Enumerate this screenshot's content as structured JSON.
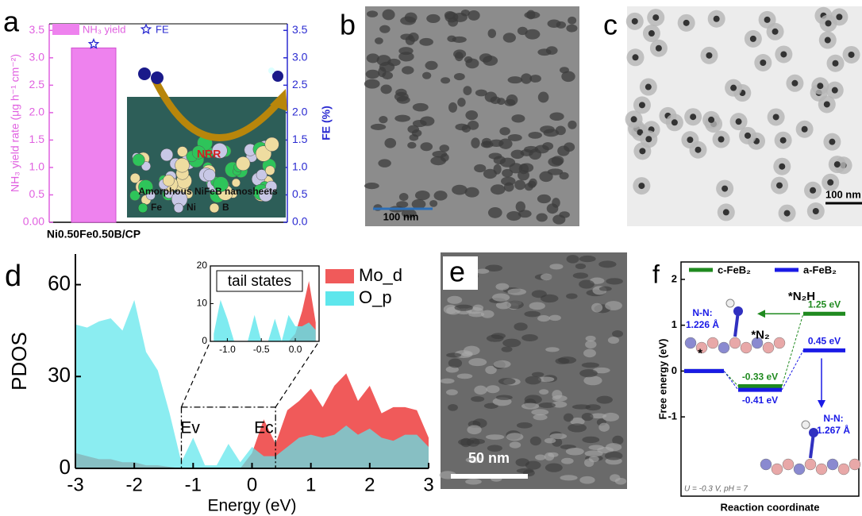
{
  "chart_data": [
    {
      "panel": "a",
      "type": "bar",
      "categories": [
        "Ni0.50Fe0.50B/CP"
      ],
      "series": [
        {
          "name": "NH₃ yield",
          "color": "#ee82ee",
          "values": [
            3.18
          ]
        },
        {
          "name": "FE",
          "color": "#2b2bd1",
          "values": [
            3.25
          ],
          "axis": "y2",
          "marker": "star"
        }
      ],
      "ylabel": "NH₃ yield rate (μg h⁻¹ cm⁻²)",
      "y2label": "FE (%)",
      "ylim": [
        0,
        3.62
      ],
      "yticks": [
        {
          "value": 0,
          "label": "0.00"
        },
        0.5,
        {
          "value": 1,
          "label": "1.0"
        },
        1.5,
        {
          "value": 2,
          "label": "2.0"
        },
        2.5,
        {
          "value": 3,
          "label": "3.0"
        },
        3.5
      ],
      "y2lim": [
        0,
        3.62
      ],
      "y2ticks": [
        {
          "value": 0,
          "label": "0.0"
        },
        0.5,
        {
          "value": 1,
          "label": "1.0"
        },
        1.5,
        {
          "value": 2,
          "label": "2.0"
        },
        2.5,
        {
          "value": 3,
          "label": "3.0"
        },
        3.5
      ],
      "inset": {
        "annotation": "NRR",
        "caption": "Amorphous NiFeB nanosheets",
        "legend": [
          "Fe",
          "Ni",
          "B"
        ]
      }
    },
    {
      "panel": "d",
      "type": "area",
      "x": [
        -3,
        -2.8,
        -2.6,
        -2.4,
        -2.2,
        -2,
        -1.8,
        -1.6,
        -1.4,
        -1.2,
        -1,
        -0.8,
        -0.6,
        -0.4,
        -0.2,
        0,
        0.2,
        0.4,
        0.6,
        0.8,
        1,
        1.2,
        1.4,
        1.6,
        1.8,
        2,
        2.2,
        2.4,
        2.6,
        2.8,
        3
      ],
      "series": [
        {
          "name": "Mo_d",
          "color": "#f05a5a",
          "values": [
            5,
            4,
            3,
            3,
            2,
            2,
            1,
            1,
            0.5,
            0,
            0,
            0,
            0,
            0,
            0,
            5,
            16,
            8,
            19,
            22,
            26,
            20,
            27,
            31,
            22,
            27,
            18,
            20,
            20,
            19,
            10
          ]
        },
        {
          "name": "O_p",
          "color": "#5ee6ec",
          "values": [
            47,
            46,
            48,
            49,
            45,
            55,
            38,
            32,
            18,
            2,
            10,
            1,
            1,
            8,
            2,
            7,
            4,
            4,
            7,
            10,
            11,
            10,
            11,
            14,
            11,
            13,
            10,
            9,
            11,
            11,
            7
          ]
        }
      ],
      "xlabel": "Energy (eV)",
      "ylabel": "PDOS",
      "xlim": [
        -3,
        3
      ],
      "xticks": [
        -3,
        -2,
        -1,
        0,
        1,
        2,
        3
      ],
      "ylim": [
        0,
        70
      ],
      "yticks": [
        0,
        30,
        60
      ],
      "annotations": [
        "Ev",
        "Ec"
      ],
      "inset": {
        "title": "tail states",
        "x": [
          -1.2,
          -1.1,
          -1,
          -0.9,
          -0.8,
          -0.7,
          -0.6,
          -0.5,
          -0.4,
          -0.3,
          -0.2,
          -0.1,
          0,
          0.1,
          0.2,
          0.3
        ],
        "series": [
          {
            "color": "#f05a5a",
            "values": [
              0,
              0,
              0,
              0,
              0,
              0,
              0,
              0,
              0,
              0,
              0,
              0,
              2,
              8,
              16,
              5
            ]
          },
          {
            "color": "#5ee6ec",
            "values": [
              2,
              11,
              6,
              0,
              0,
              0,
              7,
              0,
              0,
              6,
              0,
              7,
              4,
              4,
              5,
              3
            ]
          }
        ],
        "xlim": [
          -1.25,
          0.35
        ],
        "xticks": [
          {
            "value": -1,
            "label": "-1.0"
          },
          -0.5,
          {
            "value": 0,
            "label": "0.0"
          }
        ],
        "ylim": [
          0,
          20
        ],
        "yticks": [
          0,
          10,
          20
        ]
      }
    },
    {
      "panel": "f",
      "type": "energy-diagram",
      "categories": [
        "*",
        "*N₂",
        "*N₂H"
      ],
      "series": [
        {
          "name": "c-FeB₂",
          "color": "#1f8a1f",
          "values": [
            0,
            -0.33,
            1.25
          ],
          "value_labels": [
            null,
            "-0.33 eV",
            "1.25 eV"
          ]
        },
        {
          "name": "a-FeB₂",
          "color": "#1a1ae6",
          "values": [
            0,
            -0.41,
            0.45
          ],
          "value_labels": [
            null,
            "-0.41 eV",
            "0.45 eV"
          ]
        }
      ],
      "xlabel": "Reaction coordinate",
      "ylabel": "Free energy (eV)",
      "ylim": [
        -2.73,
        2.38
      ],
      "yticks": [
        -1,
        0,
        1,
        2
      ],
      "bond_labels": [
        [
          "N-N:",
          "1.226 Å"
        ],
        [
          "N-N:",
          "1.267 Å"
        ]
      ],
      "condition": "U = -0.3 V, pH = 7"
    }
  ],
  "images": [
    {
      "panel": "b",
      "scale_bar": "100 nm"
    },
    {
      "panel": "c",
      "scale_bar": "100 nm"
    },
    {
      "panel": "e",
      "scale_bar": "50 nm"
    }
  ]
}
